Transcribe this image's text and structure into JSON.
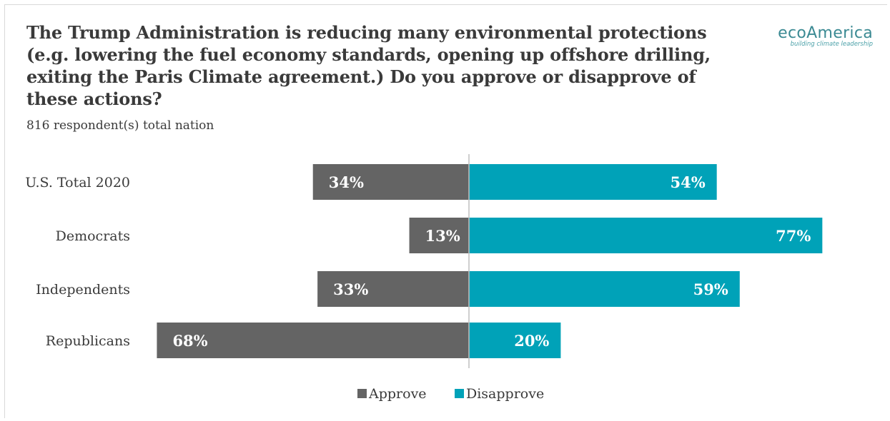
{
  "title": "The Trump Administration is reducing many environmental protections (e.g. lowering the fuel economy standards, opening up offshore drilling, exiting the Paris Climate agreement.) Do you approve or disapprove of these actions?",
  "subtitle": "816 respondent(s) total nation",
  "logo": {
    "word": "ecoAmerica",
    "tagline": "building climate leadership"
  },
  "colors": {
    "approve": "#646464",
    "disapprove": "#00a2b8",
    "axis": "#bfbfbf"
  },
  "chart_data": {
    "type": "bar",
    "orientation": "horizontal-diverging",
    "categories": [
      "U.S. Total 2020",
      "Democrats",
      "Independents",
      "Republicans"
    ],
    "series": [
      {
        "name": "Approve",
        "values": [
          34,
          13,
          33,
          68
        ],
        "labels": [
          "34%",
          "13%",
          "33%",
          "68%"
        ]
      },
      {
        "name": "Disapprove",
        "values": [
          54,
          77,
          59,
          20
        ],
        "labels": [
          "54%",
          "77%",
          "59%",
          "20%"
        ]
      }
    ],
    "legend": "bottom-center",
    "grid": false
  }
}
